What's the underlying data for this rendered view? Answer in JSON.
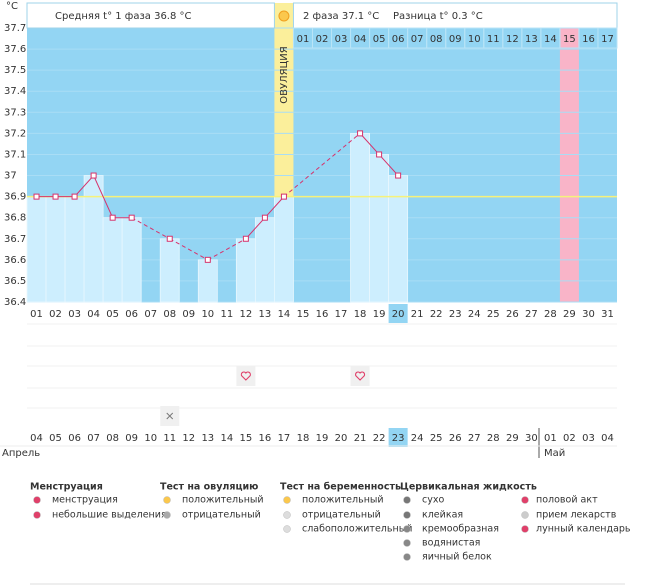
{
  "header": {
    "unit": "°C",
    "phase1": "Средняя t° 1 фаза 36.8 °C",
    "phase2": "2 фаза 37.1 °C",
    "difference": "Разница t° 0.3 °C",
    "ovulation": "ОВУЛЯЦИЯ"
  },
  "chart_data": {
    "type": "line",
    "categories": [
      "01",
      "02",
      "03",
      "04",
      "05",
      "06",
      "07",
      "08",
      "09",
      "10",
      "11",
      "12",
      "13",
      "14",
      "15",
      "16",
      "17",
      "18",
      "19",
      "20",
      "21",
      "22",
      "23",
      "24",
      "25",
      "26",
      "27",
      "28",
      "29",
      "30",
      "31"
    ],
    "values": [
      36.9,
      36.9,
      36.9,
      37.0,
      36.8,
      36.8,
      null,
      36.7,
      null,
      36.6,
      null,
      36.7,
      36.8,
      36.9,
      null,
      null,
      null,
      37.2,
      37.1,
      37.0,
      null,
      null,
      null,
      null,
      null,
      null,
      null,
      null,
      null,
      null,
      null
    ],
    "color": "#d6336c",
    "bar_color": "#cdeefe",
    "background": "#93d5f3",
    "ylim": [
      36.4,
      37.7
    ],
    "yticks": [
      36.4,
      36.5,
      36.6,
      36.7,
      36.8,
      36.9,
      37,
      37.1,
      37.2,
      37.3,
      37.4,
      37.5,
      37.6,
      37.7
    ],
    "coverline": 36.9,
    "ovulation_day": 14,
    "menstruation_day": 29,
    "grid": true,
    "phase2_days": [
      "01",
      "02",
      "03",
      "04",
      "05",
      "06",
      "07",
      "08",
      "09",
      "10",
      "11",
      "12",
      "13",
      "14",
      "15",
      "16",
      "17"
    ],
    "dates": [
      "04",
      "05",
      "06",
      "07",
      "08",
      "09",
      "10",
      "11",
      "12",
      "13",
      "14",
      "15",
      "16",
      "17",
      "18",
      "19",
      "20",
      "21",
      "22",
      "23",
      "24",
      "25",
      "26",
      "27",
      "28",
      "29",
      "30",
      "01",
      "02",
      "03",
      "04"
    ],
    "months": [
      "Апрель",
      "Май"
    ],
    "intercourse_days": [
      12,
      18
    ],
    "dry_days": [
      8
    ]
  },
  "legend": {
    "groups": [
      {
        "title": "Менструация",
        "items": [
          "менструация",
          "небольшие выделения"
        ]
      },
      {
        "title": "Тест на овуляцию",
        "items": [
          "положительный",
          "отрицательный"
        ]
      },
      {
        "title": "Тест на беременность",
        "items": [
          "положительный",
          "отрицательный",
          "слабоположительный"
        ]
      },
      {
        "title": "Цервикальная жидкость",
        "items": [
          "сухо",
          "клейкая",
          "кремообразная",
          "водянистая",
          "яичный белок"
        ]
      }
    ],
    "extra_items": [
      "половой акт",
      "прием лекарств",
      "лунный календарь"
    ]
  }
}
